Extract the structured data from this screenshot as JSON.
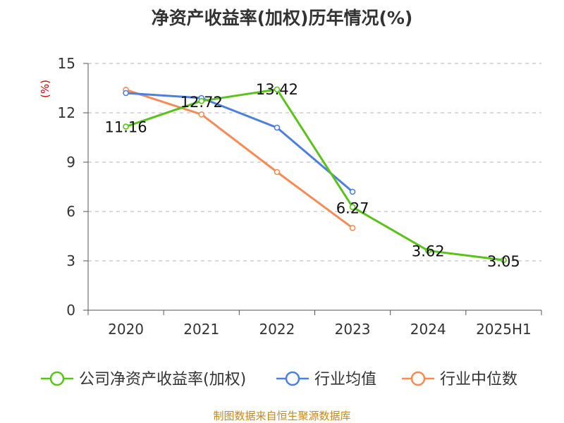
{
  "chart_data": {
    "type": "line",
    "title": "净资产收益率(加权)历年情况(%)",
    "unit_label": "(%)",
    "categories": [
      "2020",
      "2021",
      "2022",
      "2023",
      "2024",
      "2025H1"
    ],
    "ylim": [
      0,
      15
    ],
    "yticks": [
      0,
      3,
      6,
      9,
      12,
      15
    ],
    "grid": true,
    "legend_position": "bottom",
    "series": [
      {
        "name": "公司净资产收益率(加权)",
        "color": "#5bc21b",
        "values": [
          11.16,
          12.72,
          13.42,
          6.27,
          3.62,
          3.05
        ],
        "labels": [
          "11.16",
          "12.72",
          "13.42",
          "6.27",
          "3.62",
          "3.05"
        ]
      },
      {
        "name": "行业均值",
        "color": "#4f7fdc",
        "values": [
          13.2,
          12.9,
          11.1,
          7.2,
          null,
          null
        ]
      },
      {
        "name": "行业中位数",
        "color": "#f58b57",
        "values": [
          13.4,
          11.9,
          8.4,
          5.0,
          null,
          null
        ]
      }
    ],
    "source": "制图数据来自恒生聚源数据库"
  }
}
